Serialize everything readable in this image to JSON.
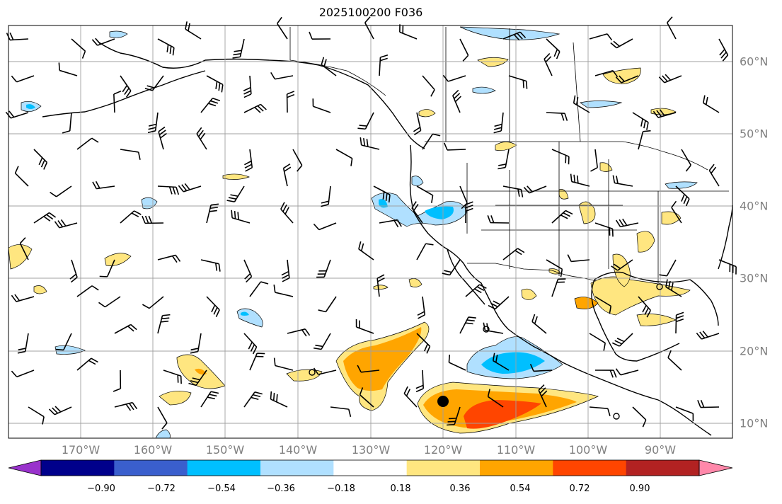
{
  "title": "2025100200 F036",
  "colors": {
    "ocean": "#ffffff",
    "grid": "#a0a0a0",
    "coast": "#000000"
  },
  "lon_labels": [
    "170°W",
    "160°W",
    "150°W",
    "140°W",
    "130°W",
    "120°W",
    "110°W",
    "100°W",
    "90°W"
  ],
  "lat_labels": [
    "10°N",
    "20°N",
    "30°N",
    "40°N",
    "50°N",
    "60°N"
  ],
  "colorbar": {
    "ticks": [
      "−0.90",
      "−0.72",
      "−0.54",
      "−0.36",
      "−0.18",
      "0.18",
      "0.36",
      "0.54",
      "0.72",
      "0.90"
    ],
    "colors": [
      "#9932cc",
      "#00008b",
      "#3a5fcd",
      "#00bfff",
      "#b0e0ff",
      "#ffffff",
      "#ffe680",
      "#ffa500",
      "#ff4500",
      "#b22222",
      "#ff88aa"
    ]
  }
}
